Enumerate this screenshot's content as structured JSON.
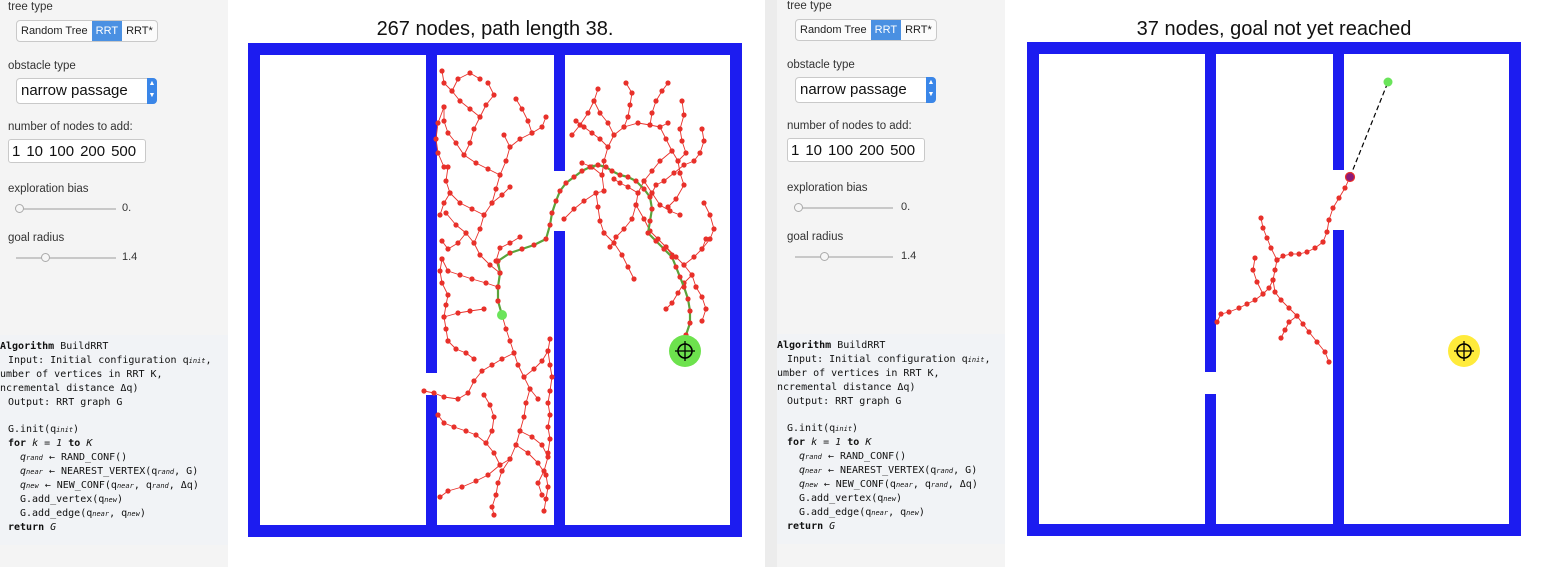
{
  "labels": {
    "tree_type": "tree type",
    "obstacle_type": "obstacle type",
    "nodes_to_add": "number of nodes to add:",
    "exploration_bias": "exploration bias",
    "goal_radius": "goal radius"
  },
  "tree_type_options": [
    "Random Tree",
    "RRT",
    "RRT*"
  ],
  "node_count_options": [
    "1",
    "10",
    "100",
    "200",
    "500"
  ],
  "obstacle_selected": "narrow passage",
  "exploration_bias_value": "0.",
  "goal_radius_value": "1.4",
  "algorithm": {
    "l1_kw": "Algorithm",
    "l1_name": "BuildRRT",
    "l2": "Input: Initial configuration q",
    "l2_sub": "init",
    "l3": "umber of vertices in RRT K,",
    "l4": "ncremental distance Δq)",
    "l5": "Output: RRT graph G",
    "l6": "G.init(q",
    "l6_sub": "init",
    "l7_for": "for",
    "l7_rest": "k = 1",
    "l7_to": "to",
    "l7_k": "K",
    "l8_q": "q",
    "l8_sub": "rand",
    "l8_rest": " ← RAND_CONF()",
    "l9_q": "q",
    "l9_sub": "near",
    "l9_rest": " ← NEAREST_VERTEX(q",
    "l9_sub2": "rand",
    "l9_end": ", G)",
    "l10_q": "q",
    "l10_sub": "new",
    "l10_rest": " ← NEW_CONF(q",
    "l10_sub2": "near",
    "l10_mid": ", q",
    "l10_sub3": "rand",
    "l10_end": ", Δq)",
    "l11": "G.add_vertex(q",
    "l11_sub": "new",
    "l12": "G.add_edge(q",
    "l12_sub": "near",
    "l12_mid": ", q",
    "l12_sub2": "new",
    "l13_kw": "return",
    "l13_g": "G"
  },
  "left_sim": {
    "title": "267 nodes, path length 38.",
    "tree_type_active": "RRT",
    "status": "goal reached"
  },
  "right_sim": {
    "title": "37 nodes, goal not yet reached",
    "tree_type_active": "RRT",
    "status": "exploring"
  },
  "colors": {
    "wall": "#1c1cf0",
    "node": "#e8302a",
    "path": "#5aa33a",
    "start": "#6ae45a",
    "goal_reached": "#6de24d",
    "goal_pending": "#ffeb3b",
    "active_tab": "#4a90e2"
  }
}
